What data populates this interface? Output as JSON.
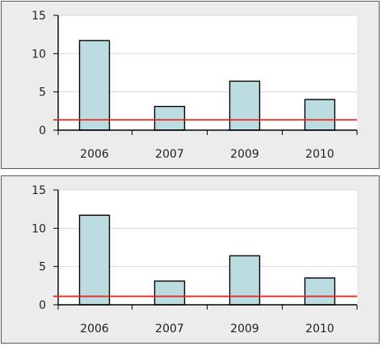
{
  "chart_data": [
    {
      "type": "bar",
      "categories": [
        "2006",
        "2007",
        "2009",
        "2010"
      ],
      "values": [
        11.7,
        3.1,
        6.4,
        4.0
      ],
      "reference_line": 1.35,
      "ylim": [
        0,
        15
      ],
      "yticks": [
        "0",
        "5",
        "10",
        "15"
      ],
      "grid": "horizontal",
      "bar_color": "#bbdde2",
      "line_color": "#e8281e"
    },
    {
      "type": "bar",
      "categories": [
        "2006",
        "2007",
        "2009",
        "2010"
      ],
      "values": [
        11.7,
        3.1,
        6.4,
        3.5
      ],
      "reference_line": 1.1,
      "ylim": [
        0,
        15
      ],
      "yticks": [
        "0",
        "5",
        "10",
        "15"
      ],
      "grid": "horizontal",
      "bar_color": "#bbdde2",
      "line_color": "#e8281e"
    }
  ]
}
